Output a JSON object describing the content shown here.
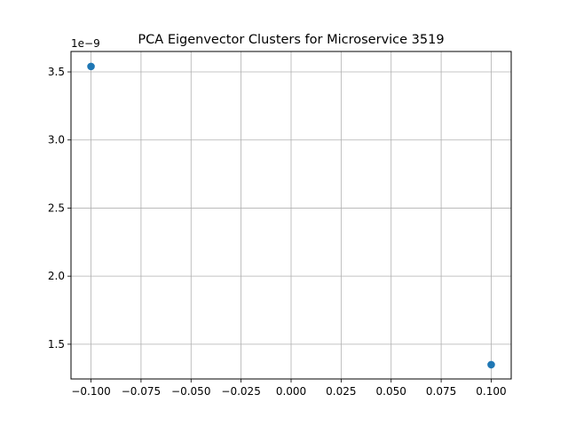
{
  "chart_data": {
    "type": "scatter",
    "title": "PCA Eigenvector Clusters for Microservice 3519",
    "xlabel": "",
    "ylabel": "",
    "y_offset_label": "1e−9",
    "xlim": [
      -0.11,
      0.11
    ],
    "ylim": [
      1.245e-09,
      3.65e-09
    ],
    "x_ticks": [
      -0.1,
      -0.075,
      -0.05,
      -0.025,
      0.0,
      0.025,
      0.05,
      0.075,
      0.1
    ],
    "x_tick_labels": [
      "−0.100",
      "−0.075",
      "−0.050",
      "−0.025",
      "0.000",
      "0.025",
      "0.050",
      "0.075",
      "0.100"
    ],
    "y_ticks": [
      1.5e-09,
      2e-09,
      2.5e-09,
      3e-09,
      3.5e-09
    ],
    "y_tick_labels": [
      "1.5",
      "2.0",
      "2.5",
      "3.0",
      "3.5"
    ],
    "grid": true,
    "color": "#1f77b4",
    "points": [
      {
        "x": -0.1,
        "y": 3.54e-09
      },
      {
        "x": 0.1,
        "y": 1.35e-09
      }
    ]
  }
}
